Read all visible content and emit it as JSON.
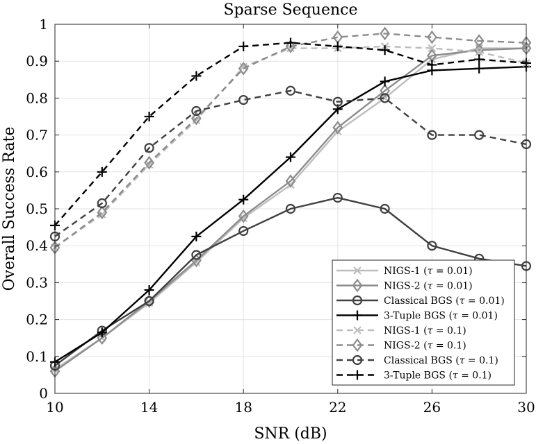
{
  "chart_data": {
    "type": "line",
    "title": "Sparse Sequence",
    "xlabel": "SNR (dB)",
    "ylabel": "Overall Success Rate",
    "xlim": [
      10,
      30
    ],
    "ylim": [
      0,
      1
    ],
    "xticks": [
      10,
      14,
      18,
      22,
      26,
      30
    ],
    "yticks": [
      0,
      0.1,
      0.2,
      0.3,
      0.4,
      0.5,
      0.6,
      0.7,
      0.8,
      0.9,
      1
    ],
    "ytick_labels": [
      "0",
      "0.1",
      "0.2",
      "0.3",
      "0.4",
      "0.5",
      "0.6",
      "0.7",
      "0.8",
      "0.9",
      "1"
    ],
    "grid": true,
    "legend_position": "bottom-right",
    "x": [
      10,
      12,
      14,
      16,
      18,
      20,
      22,
      24,
      26,
      28,
      30
    ],
    "series": [
      {
        "name": "NIGS-1",
        "tau": "0.01",
        "color": "#bdbdbd",
        "style": "solid",
        "marker": "x",
        "values": [
          0.065,
          0.15,
          0.245,
          0.355,
          0.475,
          0.565,
          0.71,
          0.8,
          0.905,
          0.935,
          0.935
        ]
      },
      {
        "name": "NIGS-2",
        "tau": "0.01",
        "color": "#8c8c8c",
        "style": "solid",
        "marker": "diamond",
        "values": [
          0.06,
          0.15,
          0.25,
          0.36,
          0.48,
          0.575,
          0.72,
          0.82,
          0.915,
          0.93,
          0.935
        ]
      },
      {
        "name": "Classical BGS",
        "tau": "0.01",
        "color": "#404040",
        "style": "solid",
        "marker": "circle",
        "values": [
          0.075,
          0.17,
          0.25,
          0.375,
          0.44,
          0.5,
          0.53,
          0.5,
          0.4,
          0.365,
          0.345
        ]
      },
      {
        "name": "3-Tuple BGS",
        "tau": "0.01",
        "color": "#000000",
        "style": "solid",
        "marker": "plus",
        "values": [
          0.085,
          0.165,
          0.28,
          0.425,
          0.525,
          0.64,
          0.77,
          0.845,
          0.875,
          0.88,
          0.885
        ]
      },
      {
        "name": "NIGS-1",
        "tau": "0.1",
        "color": "#bdbdbd",
        "style": "dashed",
        "marker": "x",
        "values": [
          0.395,
          0.485,
          0.62,
          0.74,
          0.885,
          0.935,
          0.935,
          0.94,
          0.935,
          0.925,
          0.895
        ]
      },
      {
        "name": "NIGS-2",
        "tau": "0.1",
        "color": "#8c8c8c",
        "style": "dashed",
        "marker": "diamond",
        "values": [
          0.395,
          0.49,
          0.625,
          0.745,
          0.88,
          0.94,
          0.965,
          0.975,
          0.965,
          0.955,
          0.95
        ]
      },
      {
        "name": "Classical BGS",
        "tau": "0.1",
        "color": "#404040",
        "style": "dashed",
        "marker": "circle",
        "values": [
          0.425,
          0.515,
          0.665,
          0.765,
          0.795,
          0.82,
          0.79,
          0.8,
          0.7,
          0.7,
          0.675
        ]
      },
      {
        "name": "3-Tuple BGS",
        "tau": "0.1",
        "color": "#000000",
        "style": "dashed",
        "marker": "plus",
        "values": [
          0.455,
          0.6,
          0.75,
          0.86,
          0.94,
          0.95,
          0.94,
          0.93,
          0.89,
          0.905,
          0.895
        ]
      }
    ]
  }
}
